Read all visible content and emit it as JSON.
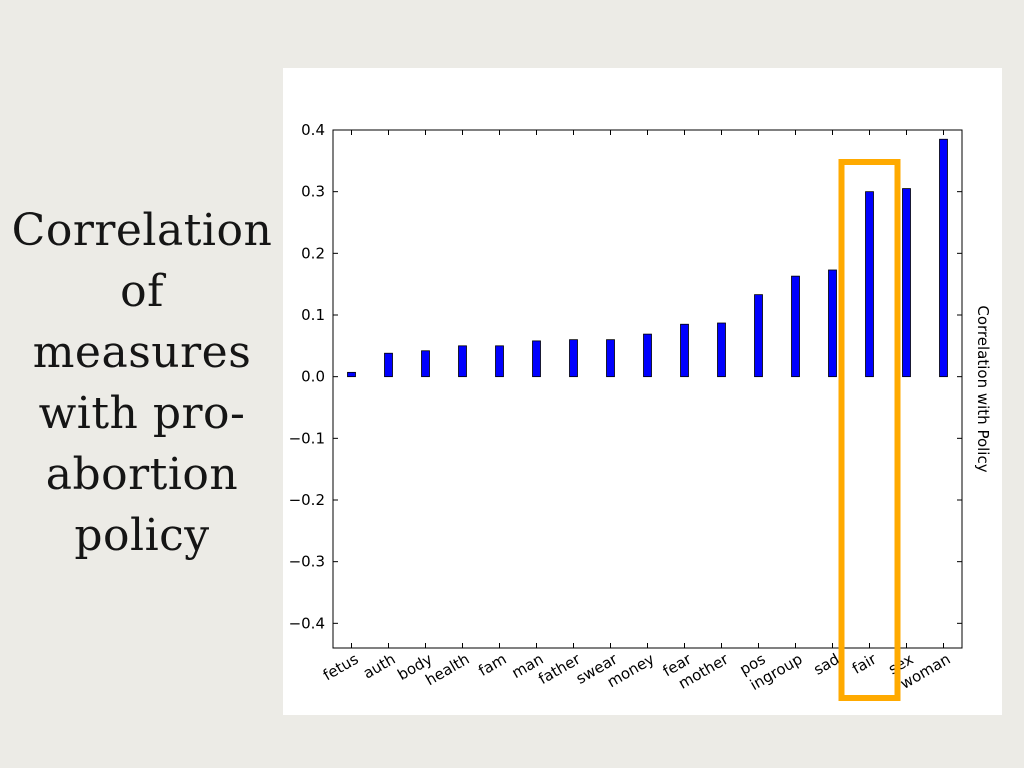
{
  "slide": {
    "title_lines": [
      "Correlation",
      "of",
      "measures",
      "with pro-",
      "abortion",
      "policy"
    ]
  },
  "colors": {
    "bar": "#0000ff",
    "highlight": "#ffaa00",
    "background": "#ecebe6",
    "panel": "#ffffff"
  },
  "chart_data": {
    "type": "bar",
    "categories": [
      "fetus",
      "auth",
      "body",
      "health",
      "fam",
      "man",
      "father",
      "swear",
      "money",
      "fear",
      "mother",
      "pos",
      "ingroup",
      "sad",
      "fair",
      "sex",
      "woman"
    ],
    "values": [
      0.007,
      0.038,
      0.042,
      0.05,
      0.05,
      0.058,
      0.06,
      0.06,
      0.069,
      0.085,
      0.087,
      0.133,
      0.163,
      0.173,
      0.3,
      0.305,
      0.385
    ],
    "ylabel": "Correlation with Policy",
    "ylabel_position": "right",
    "ylim": [
      -0.44,
      0.4
    ],
    "yticks": [
      "0.4",
      "0.3",
      "0.2",
      "0.1",
      "0.0",
      "−0.1",
      "−0.2",
      "−0.3",
      "−0.4"
    ],
    "ytick_values": [
      0.4,
      0.3,
      0.2,
      0.1,
      0.0,
      -0.1,
      -0.2,
      -0.3,
      -0.4
    ],
    "grid": false,
    "highlight_category": "fair"
  }
}
